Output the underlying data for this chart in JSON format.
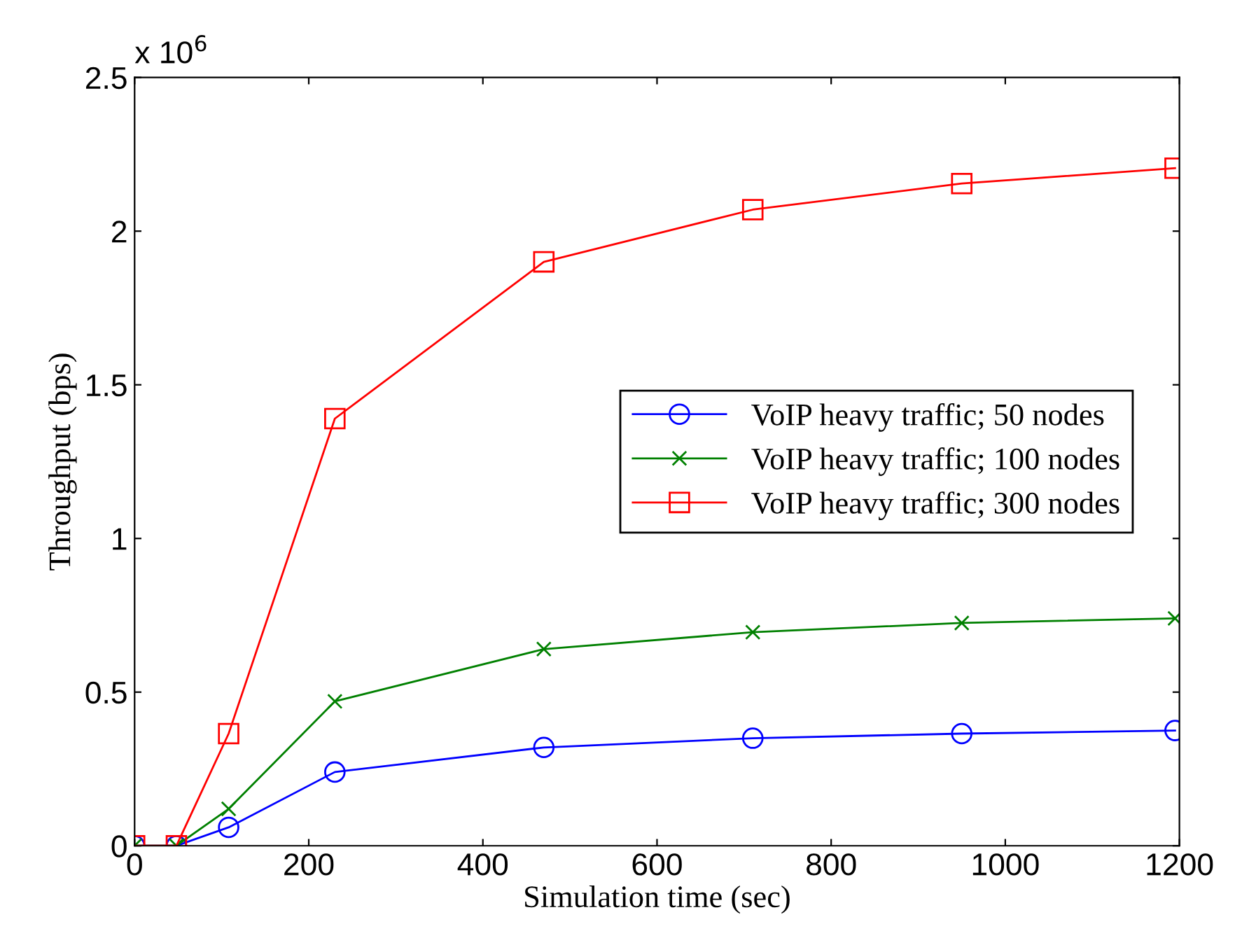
{
  "chart_data": {
    "type": "line",
    "xlabel": "Simulation time (sec)",
    "ylabel": "Throughput (bps)",
    "x": [
      0,
      48,
      108,
      230,
      470,
      710,
      950,
      1195
    ],
    "series": [
      {
        "name": "VoIP heavy traffic; 50 nodes",
        "color": "#0000ff",
        "marker": "circle",
        "values": [
          0,
          0,
          0.06,
          0.24,
          0.32,
          0.35,
          0.365,
          0.375
        ]
      },
      {
        "name": "VoIP heavy traffic; 100 nodes",
        "color": "#008000",
        "marker": "cross",
        "values": [
          0,
          0,
          0.12,
          0.47,
          0.64,
          0.695,
          0.725,
          0.74
        ]
      },
      {
        "name": "VoIP heavy traffic; 300 nodes",
        "color": "#ff0000",
        "marker": "square",
        "values": [
          0,
          0,
          0.365,
          1.39,
          1.9,
          2.07,
          2.155,
          2.205
        ]
      }
    ],
    "xlim": [
      0,
      1200
    ],
    "xticks": [
      0,
      200,
      400,
      600,
      800,
      1000,
      1200
    ],
    "ylim": [
      0,
      2.5
    ],
    "yticks": [
      0,
      0.5,
      1,
      1.5,
      2,
      2.5
    ],
    "annotations": [
      "x 10$^{6}$"
    ],
    "grid": false,
    "legend": "center right",
    "line_style": "solid"
  }
}
